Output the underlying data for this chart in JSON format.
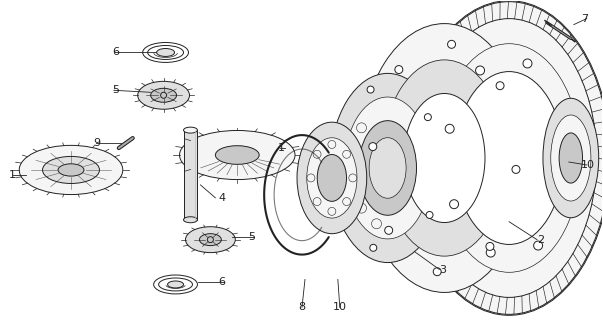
{
  "bg_color": "#ffffff",
  "line_color": "#222222",
  "fig_width": 6.03,
  "fig_height": 3.2,
  "dpi": 100
}
